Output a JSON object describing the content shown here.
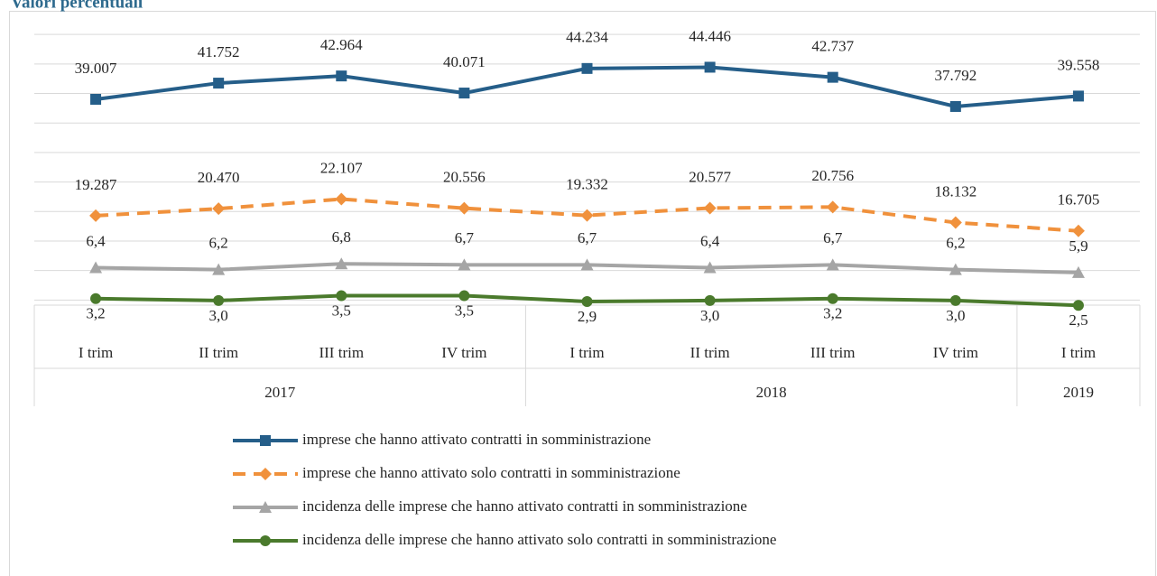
{
  "chart_data": {
    "type": "line",
    "title": "Valori percentuali",
    "categories": [
      "I trim",
      "II trim",
      "III trim",
      "IV trim",
      "I trim",
      "II trim",
      "III trim",
      "IV trim",
      "I trim"
    ],
    "groups": [
      {
        "label": "2017",
        "span": 4
      },
      {
        "label": "2018",
        "span": 4
      },
      {
        "label": "2019",
        "span": 1
      }
    ],
    "ylim": [
      0,
      54000
    ],
    "yticks": [
      5000,
      10000,
      15000,
      20000,
      25000,
      30000,
      35000,
      40000,
      45000,
      50000
    ],
    "grid": true,
    "y2lim": [
      0,
      33
    ],
    "series": [
      {
        "name": "imprese che hanno attivato contratti in somministrazione",
        "color": "#255e89",
        "marker": "square",
        "dash": false,
        "values": [
          39007,
          41752,
          42964,
          40071,
          44234,
          44446,
          42737,
          37792,
          39558
        ],
        "value_labels": [
          "39.007",
          "41.752",
          "42.964",
          "40.071",
          "44.234",
          "44.446",
          "42.737",
          "37.792",
          "39.558"
        ]
      },
      {
        "name": "imprese che hanno attivato solo contratti in somministrazione",
        "color": "#f0913c",
        "marker": "diamond",
        "dash": true,
        "values": [
          19287,
          20470,
          22107,
          20556,
          19332,
          20577,
          20756,
          18132,
          16705
        ],
        "value_labels": [
          "19.287",
          "20.470",
          "22.107",
          "20.556",
          "19.332",
          "20.577",
          "20.756",
          "18.132",
          "16.705"
        ]
      },
      {
        "name": "incidenza delle imprese che hanno attivato contratti in somministrazione",
        "color": "#a5a5a5",
        "marker": "triangle",
        "dash": false,
        "axis": "y2",
        "values": [
          6.4,
          6.2,
          6.8,
          6.7,
          6.7,
          6.4,
          6.7,
          6.2,
          5.9
        ],
        "value_labels": [
          "6,4",
          "6,2",
          "6,8",
          "6,7",
          "6,7",
          "6,4",
          "6,7",
          "6,2",
          "5,9"
        ]
      },
      {
        "name": "incidenza delle imprese che hanno attivato solo contratti in somministrazione",
        "color": "#4a7a2c",
        "marker": "circle",
        "dash": false,
        "axis": "y2",
        "values": [
          3.2,
          3.0,
          3.5,
          3.5,
          2.9,
          3.0,
          3.2,
          3.0,
          2.5
        ],
        "value_labels": [
          "3,2",
          "3,0",
          "3,5",
          "3,5",
          "2,9",
          "3,0",
          "3,2",
          "3,0",
          "2,5"
        ]
      }
    ]
  }
}
